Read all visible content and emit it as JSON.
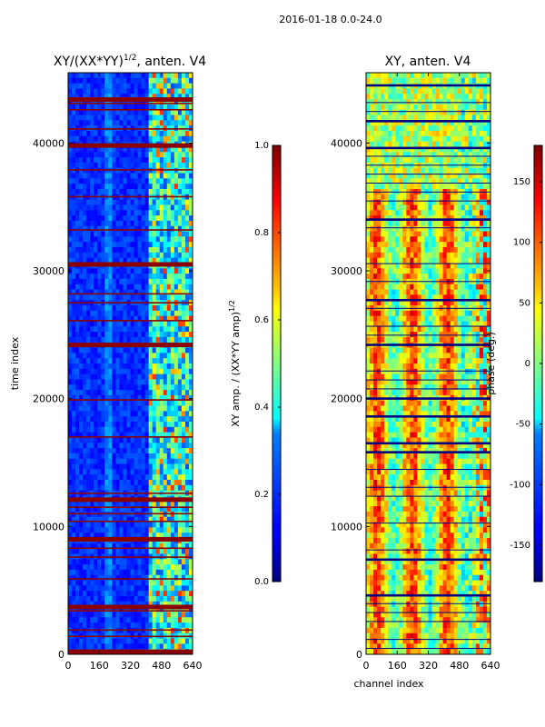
{
  "chart_data": {
    "suptitle": "2016-01-18 0.0-24.0",
    "panels": [
      {
        "type": "heatmap",
        "title": "XY/(XX*YY)^1/2, anten. V4",
        "title_main": "XY/(XX*YY)",
        "title_exp": "1/2",
        "title_tail": ", anten. V4",
        "ylabel": "time index",
        "xlabel": "",
        "xlim": [
          0,
          640
        ],
        "ylim": [
          0,
          45500
        ],
        "xticks": [
          "0",
          "160",
          "320",
          "480",
          "640"
        ],
        "yticks": [
          "0",
          "10000",
          "20000",
          "30000",
          "40000"
        ],
        "colorbar": {
          "label": "XY amp. / (XX*YY amp)^1/2",
          "label_main": "XY amp. / (XX*YY amp)",
          "label_exp": "1/2",
          "range": [
            0.0,
            1.0
          ],
          "ticks": [
            "0.0",
            "0.2",
            "0.4",
            "0.6",
            "0.8",
            "1.0"
          ],
          "colormap": "jet"
        }
      },
      {
        "type": "heatmap",
        "title": "XY, anten. V4",
        "ylabel": "",
        "xlabel": "channel index",
        "xlim": [
          0,
          640
        ],
        "ylim": [
          0,
          45500
        ],
        "xticks": [
          "0",
          "160",
          "320",
          "480",
          "640"
        ],
        "yticks": [
          "0",
          "10000",
          "20000",
          "30000",
          "40000"
        ],
        "colorbar": {
          "label": "phase (deg.)",
          "range": [
            -180,
            180
          ],
          "ticks": [
            "-150",
            "-100",
            "-50",
            "0",
            "50",
            "100",
            "150"
          ],
          "colormap": "jet"
        }
      }
    ]
  }
}
